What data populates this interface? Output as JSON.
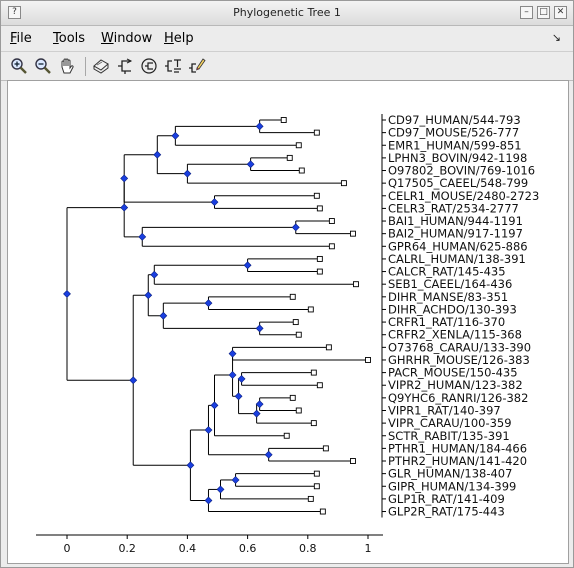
{
  "window": {
    "title": "Phylogenetic Tree 1",
    "buttons": [
      "?",
      "–",
      "□",
      "✕"
    ]
  },
  "menubar": {
    "items": [
      {
        "name": "menu-file",
        "first": "F",
        "rest": "ile"
      },
      {
        "name": "menu-tools",
        "first": "T",
        "rest": "ools"
      },
      {
        "name": "menu-window",
        "first": "W",
        "rest": "indow"
      },
      {
        "name": "menu-help",
        "first": "H",
        "rest": "elp"
      }
    ],
    "corner_glyph": "↘"
  },
  "toolbar": {
    "icons": [
      "zoom-in-icon",
      "zoom-out-icon",
      "pan-hand-icon",
      "print-icon",
      "tree-layout-icon",
      "reroot-icon",
      "tree-label-icon",
      "tree-edit-icon"
    ]
  },
  "chart_data": {
    "type": "dendrogram",
    "xlim": [
      -0.1,
      1.05
    ],
    "xticks": [
      0,
      0.2,
      0.4,
      0.6,
      0.8,
      1
    ],
    "tick_labels": [
      "0",
      "0.2",
      "0.4",
      "0.6",
      "0.8",
      "1"
    ],
    "leaves": [
      {
        "label": "CD97_HUMAN/544-793",
        "x": 0.72
      },
      {
        "label": "CD97_MOUSE/526-777",
        "x": 0.83
      },
      {
        "label": "EMR1_HUMAN/599-851",
        "x": 0.77
      },
      {
        "label": "LPHN3_BOVIN/942-1198",
        "x": 0.74
      },
      {
        "label": "O97802_BOVIN/769-1016",
        "x": 0.78
      },
      {
        "label": "Q17505_CAEEL/548-799",
        "x": 0.92
      },
      {
        "label": "CELR1_MOUSE/2480-2723",
        "x": 0.83
      },
      {
        "label": "CELR3_RAT/2534-2777",
        "x": 0.84
      },
      {
        "label": "BAI1_HUMAN/944-1191",
        "x": 0.88
      },
      {
        "label": "BAI2_HUMAN/917-1197",
        "x": 0.95
      },
      {
        "label": "GPR64_HUMAN/625-886",
        "x": 0.88
      },
      {
        "label": "CALRL_HUMAN/138-391",
        "x": 0.84
      },
      {
        "label": "CALCR_RAT/145-435",
        "x": 0.84
      },
      {
        "label": "SEB1_CAEEL/164-436",
        "x": 0.96
      },
      {
        "label": "DIHR_MANSE/83-351",
        "x": 0.75
      },
      {
        "label": "DIHR_ACHDO/130-393",
        "x": 0.81
      },
      {
        "label": "CRFR1_RAT/116-370",
        "x": 0.76
      },
      {
        "label": "CRFR2_XENLA/115-368",
        "x": 0.77
      },
      {
        "label": "O73768_CARAU/133-390",
        "x": 0.87
      },
      {
        "label": "GHRHR_MOUSE/126-383",
        "x": 1.0
      },
      {
        "label": "PACR_MOUSE/150-435",
        "x": 0.82
      },
      {
        "label": "VIPR2_HUMAN/123-382",
        "x": 0.84
      },
      {
        "label": "Q9YHC6_RANRI/126-382",
        "x": 0.75
      },
      {
        "label": "VIPR1_RAT/140-397",
        "x": 0.77
      },
      {
        "label": "VIPR_CARAU/100-359",
        "x": 0.82
      },
      {
        "label": "SCTR_RABIT/135-391",
        "x": 0.73
      },
      {
        "label": "PTHR1_HUMAN/184-466",
        "x": 0.86
      },
      {
        "label": "PTHR2_HUMAN/141-420",
        "x": 0.95
      },
      {
        "label": "GLR_HUMAN/138-407",
        "x": 0.83
      },
      {
        "label": "GIPR_HUMAN/134-399",
        "x": 0.83
      },
      {
        "label": "GLP1R_RAT/141-409",
        "x": 0.81
      },
      {
        "label": "GLP2R_RAT/175-443",
        "x": 0.85
      }
    ],
    "nodes": [
      {
        "id": "n1",
        "x": 0.64,
        "children": [
          "L0",
          "L1"
        ]
      },
      {
        "id": "n2",
        "x": 0.36,
        "children": [
          "n1",
          "L2"
        ]
      },
      {
        "id": "n3",
        "x": 0.61,
        "children": [
          "L3",
          "L4"
        ]
      },
      {
        "id": "n4",
        "x": 0.4,
        "children": [
          "n3",
          "L5"
        ]
      },
      {
        "id": "n5",
        "x": 0.3,
        "children": [
          "n2",
          "n4"
        ]
      },
      {
        "id": "n6",
        "x": 0.49,
        "children": [
          "L6",
          "L7"
        ]
      },
      {
        "id": "n7",
        "x": 0.19,
        "children": [
          "n5",
          "n6"
        ]
      },
      {
        "id": "n8",
        "x": 0.76,
        "children": [
          "L8",
          "L9"
        ]
      },
      {
        "id": "n9",
        "x": 0.25,
        "children": [
          "n8",
          "L10"
        ]
      },
      {
        "id": "n10",
        "x": 0.19,
        "children": [
          "n7",
          "n9"
        ]
      },
      {
        "id": "n11",
        "x": 0.6,
        "children": [
          "L11",
          "L12"
        ]
      },
      {
        "id": "n12",
        "x": 0.29,
        "children": [
          "n11",
          "L13"
        ]
      },
      {
        "id": "n13",
        "x": 0.47,
        "children": [
          "L14",
          "L15"
        ]
      },
      {
        "id": "n14",
        "x": 0.64,
        "children": [
          "L16",
          "L17"
        ]
      },
      {
        "id": "n15",
        "x": 0.32,
        "children": [
          "n13",
          "n14"
        ]
      },
      {
        "id": "n16",
        "x": 0.27,
        "children": [
          "n12",
          "n15"
        ]
      },
      {
        "id": "n17",
        "x": 0.55,
        "children": [
          "L18",
          "L19"
        ]
      },
      {
        "id": "n18",
        "x": 0.58,
        "children": [
          "L20",
          "L21"
        ]
      },
      {
        "id": "n19",
        "x": 0.64,
        "children": [
          "L22",
          "L23"
        ]
      },
      {
        "id": "n20",
        "x": 0.63,
        "children": [
          "n19",
          "L24"
        ]
      },
      {
        "id": "n21",
        "x": 0.57,
        "children": [
          "n18",
          "n20"
        ]
      },
      {
        "id": "n22",
        "x": 0.55,
        "children": [
          "n17",
          "n21"
        ]
      },
      {
        "id": "n23",
        "x": 0.49,
        "children": [
          "n22",
          "L25"
        ]
      },
      {
        "id": "n24",
        "x": 0.67,
        "children": [
          "L26",
          "L27"
        ]
      },
      {
        "id": "n25",
        "x": 0.47,
        "children": [
          "n23",
          "n24"
        ]
      },
      {
        "id": "n26",
        "x": 0.56,
        "children": [
          "L28",
          "L29"
        ]
      },
      {
        "id": "n27",
        "x": 0.51,
        "children": [
          "n26",
          "L30"
        ]
      },
      {
        "id": "n28",
        "x": 0.47,
        "children": [
          "n27",
          "L31"
        ]
      },
      {
        "id": "n29",
        "x": 0.41,
        "children": [
          "n25",
          "n28"
        ]
      },
      {
        "id": "n30",
        "x": 0.22,
        "children": [
          "n16",
          "n29"
        ]
      },
      {
        "id": "root",
        "x": 0.0,
        "children": [
          "n10",
          "n30"
        ]
      }
    ]
  }
}
